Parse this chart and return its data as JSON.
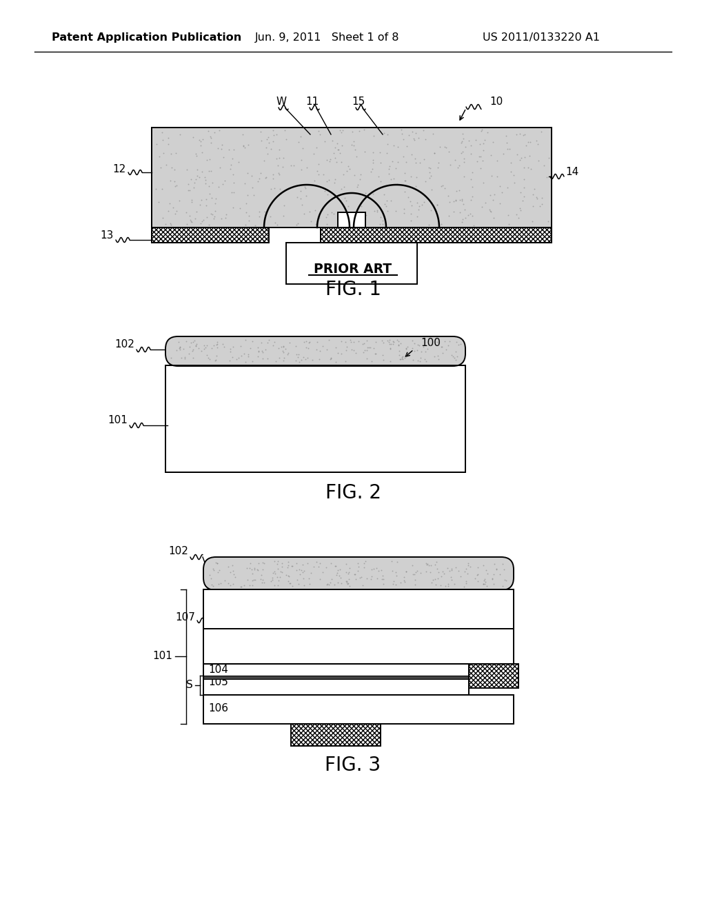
{
  "bg_color": "#ffffff",
  "header_left": "Patent Application Publication",
  "header_center": "Jun. 9, 2011   Sheet 1 of 8",
  "header_right": "US 2011/0133220 A1",
  "fig1_label": "FIG. 1",
  "fig2_label": "FIG. 2",
  "fig3_label": "FIG. 3",
  "prior_art_label": "PRIOR ART",
  "line_color": "#000000",
  "stipple_color": "#d0d0d0",
  "hatch_pattern": "/////"
}
